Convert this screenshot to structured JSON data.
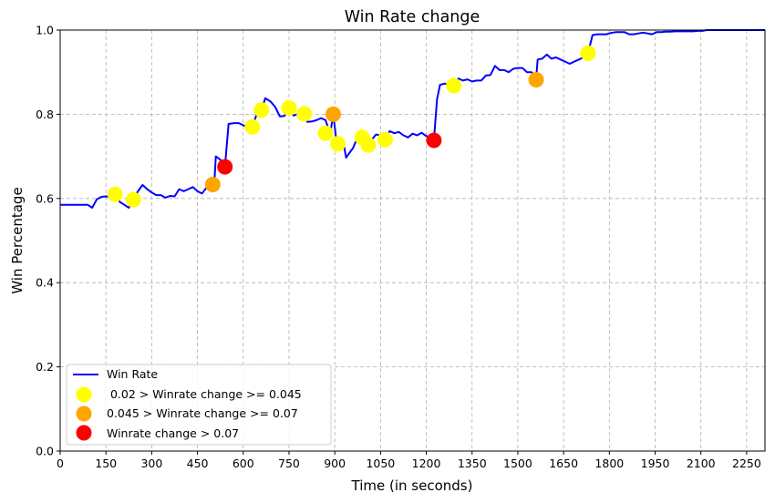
{
  "chart_data": {
    "type": "line",
    "title": "Win Rate change",
    "xlabel": "Time (in seconds)",
    "ylabel": "Win Percentage",
    "xlim": [
      0,
      2310
    ],
    "ylim": [
      0,
      1.0
    ],
    "xticks": [
      0,
      150,
      300,
      450,
      600,
      750,
      900,
      1050,
      1200,
      1350,
      1500,
      1650,
      1800,
      1950,
      2100,
      2250
    ],
    "yticks": [
      0.0,
      0.2,
      0.4,
      0.6,
      0.8,
      1.0
    ],
    "grid": true,
    "legend_position": "lower-left",
    "line_series": {
      "name": "Win Rate",
      "color": "#0000ff",
      "points": [
        [
          0,
          0.585
        ],
        [
          30,
          0.585
        ],
        [
          60,
          0.585
        ],
        [
          90,
          0.585
        ],
        [
          105,
          0.578
        ],
        [
          120,
          0.598
        ],
        [
          135,
          0.604
        ],
        [
          150,
          0.605
        ],
        [
          165,
          0.604
        ],
        [
          180,
          0.61
        ],
        [
          195,
          0.592
        ],
        [
          210,
          0.585
        ],
        [
          225,
          0.578
        ],
        [
          240,
          0.597
        ],
        [
          255,
          0.617
        ],
        [
          270,
          0.632
        ],
        [
          285,
          0.622
        ],
        [
          300,
          0.614
        ],
        [
          315,
          0.608
        ],
        [
          330,
          0.608
        ],
        [
          345,
          0.602
        ],
        [
          360,
          0.606
        ],
        [
          375,
          0.605
        ],
        [
          390,
          0.622
        ],
        [
          405,
          0.617
        ],
        [
          420,
          0.622
        ],
        [
          435,
          0.627
        ],
        [
          450,
          0.617
        ],
        [
          465,
          0.612
        ],
        [
          480,
          0.626
        ],
        [
          495,
          0.64
        ],
        [
          505,
          0.633
        ],
        [
          510,
          0.7
        ],
        [
          525,
          0.692
        ],
        [
          540,
          0.675
        ],
        [
          552,
          0.777
        ],
        [
          570,
          0.779
        ],
        [
          585,
          0.779
        ],
        [
          600,
          0.774
        ],
        [
          615,
          0.768
        ],
        [
          630,
          0.77
        ],
        [
          645,
          0.802
        ],
        [
          660,
          0.81
        ],
        [
          672,
          0.838
        ],
        [
          690,
          0.83
        ],
        [
          705,
          0.817
        ],
        [
          720,
          0.795
        ],
        [
          735,
          0.796
        ],
        [
          750,
          0.815
        ],
        [
          765,
          0.797
        ],
        [
          780,
          0.801
        ],
        [
          795,
          0.801
        ],
        [
          810,
          0.782
        ],
        [
          825,
          0.783
        ],
        [
          840,
          0.786
        ],
        [
          855,
          0.791
        ],
        [
          870,
          0.786
        ],
        [
          885,
          0.753
        ],
        [
          895,
          0.8
        ],
        [
          905,
          0.74
        ],
        [
          915,
          0.724
        ],
        [
          930,
          0.726
        ],
        [
          937,
          0.697
        ],
        [
          945,
          0.705
        ],
        [
          960,
          0.72
        ],
        [
          975,
          0.746
        ],
        [
          990,
          0.748
        ],
        [
          1005,
          0.752
        ],
        [
          1012,
          0.727
        ],
        [
          1020,
          0.738
        ],
        [
          1035,
          0.752
        ],
        [
          1050,
          0.75
        ],
        [
          1065,
          0.74
        ],
        [
          1080,
          0.76
        ],
        [
          1095,
          0.755
        ],
        [
          1110,
          0.758
        ],
        [
          1125,
          0.75
        ],
        [
          1140,
          0.745
        ],
        [
          1155,
          0.754
        ],
        [
          1170,
          0.75
        ],
        [
          1185,
          0.756
        ],
        [
          1200,
          0.748
        ],
        [
          1215,
          0.745
        ],
        [
          1225,
          0.738
        ],
        [
          1235,
          0.835
        ],
        [
          1245,
          0.87
        ],
        [
          1260,
          0.873
        ],
        [
          1275,
          0.87
        ],
        [
          1290,
          0.868
        ],
        [
          1305,
          0.885
        ],
        [
          1320,
          0.88
        ],
        [
          1335,
          0.883
        ],
        [
          1350,
          0.878
        ],
        [
          1365,
          0.88
        ],
        [
          1380,
          0.88
        ],
        [
          1395,
          0.892
        ],
        [
          1410,
          0.893
        ],
        [
          1425,
          0.915
        ],
        [
          1440,
          0.905
        ],
        [
          1455,
          0.905
        ],
        [
          1470,
          0.9
        ],
        [
          1485,
          0.908
        ],
        [
          1500,
          0.91
        ],
        [
          1515,
          0.91
        ],
        [
          1530,
          0.9
        ],
        [
          1545,
          0.9
        ],
        [
          1560,
          0.885
        ],
        [
          1565,
          0.93
        ],
        [
          1580,
          0.932
        ],
        [
          1595,
          0.942
        ],
        [
          1610,
          0.932
        ],
        [
          1625,
          0.935
        ],
        [
          1640,
          0.93
        ],
        [
          1655,
          0.925
        ],
        [
          1670,
          0.92
        ],
        [
          1685,
          0.925
        ],
        [
          1700,
          0.93
        ],
        [
          1715,
          0.935
        ],
        [
          1730,
          0.945
        ],
        [
          1745,
          0.988
        ],
        [
          1760,
          0.99
        ],
        [
          1775,
          0.99
        ],
        [
          1790,
          0.99
        ],
        [
          1805,
          0.993
        ],
        [
          1820,
          0.995
        ],
        [
          1835,
          0.995
        ],
        [
          1850,
          0.995
        ],
        [
          1865,
          0.99
        ],
        [
          1880,
          0.99
        ],
        [
          1895,
          0.992
        ],
        [
          1910,
          0.994
        ],
        [
          1925,
          0.992
        ],
        [
          1940,
          0.99
        ],
        [
          1955,
          0.995
        ],
        [
          1970,
          0.995
        ],
        [
          1985,
          0.996
        ],
        [
          2000,
          0.996
        ],
        [
          2015,
          0.997
        ],
        [
          2030,
          0.997
        ],
        [
          2045,
          0.997
        ],
        [
          2060,
          0.997
        ],
        [
          2075,
          0.997
        ],
        [
          2090,
          0.998
        ],
        [
          2105,
          0.998
        ],
        [
          2120,
          1.0
        ],
        [
          2135,
          1.0
        ],
        [
          2150,
          1.0
        ],
        [
          2180,
          1.0
        ],
        [
          2210,
          1.0
        ],
        [
          2240,
          1.0
        ],
        [
          2270,
          1.0
        ],
        [
          2310,
          1.0
        ]
      ]
    },
    "marker_series": [
      {
        "name": " 0.02 > Winrate change >= 0.045",
        "color": "#ffff00",
        "points": [
          [
            180,
            0.61
          ],
          [
            240,
            0.597
          ],
          [
            630,
            0.77
          ],
          [
            660,
            0.81
          ],
          [
            750,
            0.815
          ],
          [
            800,
            0.801
          ],
          [
            870,
            0.755
          ],
          [
            910,
            0.73
          ],
          [
            990,
            0.745
          ],
          [
            1010,
            0.727
          ],
          [
            1065,
            0.74
          ],
          [
            1290,
            0.868
          ],
          [
            1730,
            0.945
          ]
        ]
      },
      {
        "name": "0.045 > Winrate change >= 0.07",
        "color": "#ffa500",
        "points": [
          [
            500,
            0.633
          ],
          [
            895,
            0.8
          ],
          [
            1560,
            0.882
          ]
        ]
      },
      {
        "name": "Winrate change > 0.07",
        "color": "#ff0000",
        "points": [
          [
            540,
            0.675
          ],
          [
            1225,
            0.738
          ]
        ]
      }
    ]
  }
}
